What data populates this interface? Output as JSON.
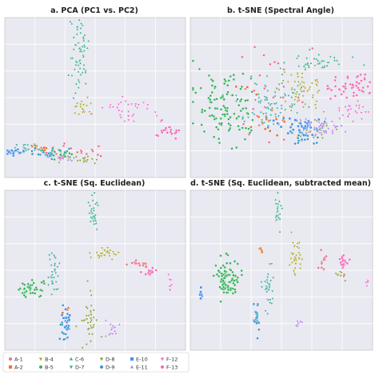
{
  "chart_data": [
    {
      "type": "scatter",
      "title": "a. PCA (PC1 vs. PC2)",
      "grid": true,
      "clusters": [
        {
          "name": "A-1",
          "x": 0.37,
          "y": 0.84,
          "sx": 0.13,
          "sy": 0.02,
          "n": 26
        },
        {
          "name": "A-2",
          "x": 0.2,
          "y": 0.81,
          "sx": 0.03,
          "sy": 0.012,
          "n": 10
        },
        {
          "name": "B-4",
          "x": 0.44,
          "y": 0.56,
          "sx": 0.025,
          "sy": 0.03,
          "n": 18
        },
        {
          "name": "B-5",
          "x": 0.3,
          "y": 0.85,
          "sx": 0.04,
          "sy": 0.015,
          "n": 20
        },
        {
          "name": "C-6",
          "x": 0.41,
          "y": 0.22,
          "sx": 0.025,
          "sy": 0.13,
          "n": 60
        },
        {
          "name": "D-7",
          "x": 0.12,
          "y": 0.82,
          "sx": 0.06,
          "sy": 0.02,
          "n": 22
        },
        {
          "name": "D-8",
          "x": 0.44,
          "y": 0.89,
          "sx": 0.04,
          "sy": 0.015,
          "n": 20
        },
        {
          "name": "D-9",
          "x": 0.22,
          "y": 0.85,
          "sx": 0.05,
          "sy": 0.015,
          "n": 22
        },
        {
          "name": "E-10",
          "x": 0.05,
          "y": 0.84,
          "sx": 0.03,
          "sy": 0.01,
          "n": 18
        },
        {
          "name": "E-11",
          "x": 0.3,
          "y": 0.88,
          "sx": 0.03,
          "sy": 0.01,
          "n": 10
        },
        {
          "name": "F-12",
          "x": 0.7,
          "y": 0.58,
          "sx": 0.08,
          "sy": 0.04,
          "n": 35
        },
        {
          "name": "F-13",
          "x": 0.91,
          "y": 0.71,
          "sx": 0.04,
          "sy": 0.02,
          "n": 20
        }
      ]
    },
    {
      "type": "scatter",
      "title": "b. t-SNE (Spectral Angle)",
      "grid": true,
      "clusters": [
        {
          "name": "A-1",
          "x": 0.4,
          "y": 0.5,
          "sx": 0.12,
          "sy": 0.12,
          "n": 35
        },
        {
          "name": "A-2",
          "x": 0.45,
          "y": 0.58,
          "sx": 0.1,
          "sy": 0.08,
          "n": 15
        },
        {
          "name": "B-4",
          "x": 0.62,
          "y": 0.45,
          "sx": 0.07,
          "sy": 0.09,
          "n": 60
        },
        {
          "name": "B-5",
          "x": 0.2,
          "y": 0.55,
          "sx": 0.09,
          "sy": 0.11,
          "n": 110
        },
        {
          "name": "C-6",
          "x": 0.7,
          "y": 0.28,
          "sx": 0.08,
          "sy": 0.02,
          "n": 40
        },
        {
          "name": "D-7",
          "x": 0.44,
          "y": 0.52,
          "sx": 0.09,
          "sy": 0.09,
          "n": 80
        },
        {
          "name": "D-8",
          "x": 0.7,
          "y": 0.7,
          "sx": 0.06,
          "sy": 0.04,
          "n": 25
        },
        {
          "name": "D-9",
          "x": 0.62,
          "y": 0.76,
          "sx": 0.05,
          "sy": 0.03,
          "n": 20
        },
        {
          "name": "E-10",
          "x": 0.63,
          "y": 0.68,
          "sx": 0.07,
          "sy": 0.03,
          "n": 45
        },
        {
          "name": "E-11",
          "x": 0.72,
          "y": 0.69,
          "sx": 0.06,
          "sy": 0.03,
          "n": 40
        },
        {
          "name": "F-12",
          "x": 0.86,
          "y": 0.58,
          "sx": 0.05,
          "sy": 0.03,
          "n": 25
        },
        {
          "name": "F-13",
          "x": 0.87,
          "y": 0.43,
          "sx": 0.06,
          "sy": 0.04,
          "n": 50
        }
      ]
    },
    {
      "type": "scatter",
      "title": "c. t-SNE (Sq. Euclidean)",
      "grid": true,
      "clusters": [
        {
          "name": "A-1",
          "x": 0.74,
          "y": 0.46,
          "sx": 0.03,
          "sy": 0.01,
          "n": 14
        },
        {
          "name": "A-2",
          "x": 0.34,
          "y": 0.75,
          "sx": 0.01,
          "sy": 0.012,
          "n": 5
        },
        {
          "name": "B-4",
          "x": 0.56,
          "y": 0.39,
          "sx": 0.04,
          "sy": 0.02,
          "n": 30
        },
        {
          "name": "B-5",
          "x": 0.15,
          "y": 0.61,
          "sx": 0.05,
          "sy": 0.03,
          "n": 40
        },
        {
          "name": "C-6",
          "x": 0.49,
          "y": 0.14,
          "sx": 0.012,
          "sy": 0.05,
          "n": 28
        },
        {
          "name": "D-7",
          "x": 0.27,
          "y": 0.52,
          "sx": 0.015,
          "sy": 0.06,
          "n": 30
        },
        {
          "name": "D-8",
          "x": 0.47,
          "y": 0.82,
          "sx": 0.025,
          "sy": 0.08,
          "n": 40
        },
        {
          "name": "D-9",
          "x": 0.33,
          "y": 0.85,
          "sx": 0.015,
          "sy": 0.05,
          "n": 22
        },
        {
          "name": "E-10",
          "x": 0.35,
          "y": 0.8,
          "sx": 0.015,
          "sy": 0.04,
          "n": 15
        },
        {
          "name": "E-11",
          "x": 0.6,
          "y": 0.87,
          "sx": 0.03,
          "sy": 0.02,
          "n": 14
        },
        {
          "name": "F-12",
          "x": 0.92,
          "y": 0.58,
          "sx": 0.005,
          "sy": 0.03,
          "n": 8
        },
        {
          "name": "F-13",
          "x": 0.81,
          "y": 0.51,
          "sx": 0.015,
          "sy": 0.012,
          "n": 14
        }
      ]
    },
    {
      "type": "scatter",
      "title": "d. t-SNE (Sq. Euclidean, subtracted mean)",
      "grid": true,
      "clusters": [
        {
          "name": "A-1",
          "x": 0.72,
          "y": 0.45,
          "sx": 0.01,
          "sy": 0.035,
          "n": 10
        },
        {
          "name": "A-2",
          "x": 0.39,
          "y": 0.38,
          "sx": 0.005,
          "sy": 0.008,
          "n": 5
        },
        {
          "name": "B-4",
          "x": 0.58,
          "y": 0.41,
          "sx": 0.02,
          "sy": 0.05,
          "n": 35
        },
        {
          "name": "B-5",
          "x": 0.2,
          "y": 0.55,
          "sx": 0.03,
          "sy": 0.065,
          "n": 85
        },
        {
          "name": "C-6",
          "x": 0.48,
          "y": 0.13,
          "sx": 0.01,
          "sy": 0.05,
          "n": 22
        },
        {
          "name": "D-7",
          "x": 0.43,
          "y": 0.61,
          "sx": 0.015,
          "sy": 0.06,
          "n": 35
        },
        {
          "name": "D-8",
          "x": 0.83,
          "y": 0.52,
          "sx": 0.012,
          "sy": 0.02,
          "n": 10
        },
        {
          "name": "D-9",
          "x": 0.36,
          "y": 0.78,
          "sx": 0.01,
          "sy": 0.05,
          "n": 22
        },
        {
          "name": "E-10",
          "x": 0.06,
          "y": 0.65,
          "sx": 0.005,
          "sy": 0.02,
          "n": 8
        },
        {
          "name": "E-11",
          "x": 0.59,
          "y": 0.83,
          "sx": 0.008,
          "sy": 0.015,
          "n": 8
        },
        {
          "name": "F-12",
          "x": 0.97,
          "y": 0.58,
          "sx": 0.005,
          "sy": 0.02,
          "n": 6
        },
        {
          "name": "F-13",
          "x": 0.84,
          "y": 0.44,
          "sx": 0.015,
          "sy": 0.035,
          "n": 20
        }
      ]
    }
  ],
  "legend": {
    "placement": "bottom-left",
    "items": [
      {
        "label": "A-1",
        "color": "#ee6f86",
        "marker": "circle"
      },
      {
        "label": "A-2",
        "color": "#e8772e",
        "marker": "square"
      },
      {
        "label": "B-4",
        "color": "#a9a628",
        "marker": "triangle-down"
      },
      {
        "label": "B-5",
        "color": "#35b05a",
        "marker": "circle"
      },
      {
        "label": "C-6",
        "color": "#33ad8b",
        "marker": "triangle-up"
      },
      {
        "label": "D-7",
        "color": "#37aa9e",
        "marker": "triangle-down"
      },
      {
        "label": "D-8",
        "color": "#7f9c2e",
        "marker": "triangle-down"
      },
      {
        "label": "D-9",
        "color": "#3595c3",
        "marker": "circle"
      },
      {
        "label": "E-10",
        "color": "#4a8fe8",
        "marker": "square"
      },
      {
        "label": "E-11",
        "color": "#b77ee8",
        "marker": "triangle-up"
      },
      {
        "label": "F-12",
        "color": "#f065d0",
        "marker": "triangle-down"
      },
      {
        "label": "F-13",
        "color": "#f266b5",
        "marker": "circle"
      }
    ]
  }
}
